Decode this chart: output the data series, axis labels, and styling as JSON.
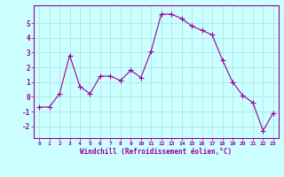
{
  "x": [
    0,
    1,
    2,
    3,
    4,
    5,
    6,
    7,
    8,
    9,
    10,
    11,
    12,
    13,
    14,
    15,
    16,
    17,
    18,
    19,
    20,
    21,
    22,
    23
  ],
  "y": [
    -0.7,
    -0.7,
    0.2,
    2.8,
    0.7,
    0.2,
    1.4,
    1.4,
    1.1,
    1.8,
    1.3,
    3.1,
    5.6,
    5.6,
    5.3,
    4.8,
    4.5,
    4.2,
    2.5,
    1.0,
    0.1,
    -0.4,
    -2.3,
    -1.1
  ],
  "line_color": "#990099",
  "marker": "+",
  "marker_size": 4,
  "background_color": "#ccffff",
  "grid_color": "#aadddd",
  "xlabel": "Windchill (Refroidissement éolien,°C)",
  "xlabel_color": "#990099",
  "tick_color": "#990099",
  "axis_color": "#990099",
  "ylim": [
    -2.8,
    6.2
  ],
  "xlim": [
    -0.5,
    23.5
  ],
  "yticks": [
    -2,
    -1,
    0,
    1,
    2,
    3,
    4,
    5
  ],
  "xticks": [
    0,
    1,
    2,
    3,
    4,
    5,
    6,
    7,
    8,
    9,
    10,
    11,
    12,
    13,
    14,
    15,
    16,
    17,
    18,
    19,
    20,
    21,
    22,
    23
  ],
  "xtick_labels": [
    "0",
    "1",
    "2",
    "3",
    "4",
    "5",
    "6",
    "7",
    "8",
    "9",
    "10",
    "11",
    "12",
    "13",
    "14",
    "15",
    "16",
    "17",
    "18",
    "19",
    "20",
    "21",
    "22",
    "23"
  ]
}
